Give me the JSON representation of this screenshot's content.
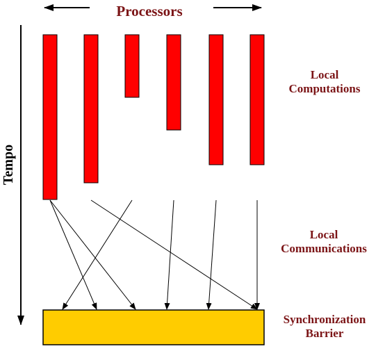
{
  "labels": {
    "processors": "Processors",
    "time_axis": "Tempo",
    "local_computations": [
      "Local",
      "Computations"
    ],
    "local_communications": [
      "Local",
      "Communications"
    ],
    "synchronization_barrier": [
      "Synchronization",
      "Barrier"
    ]
  },
  "colors": {
    "computation_bar": "#ff0000",
    "barrier_fill": "#ffcc00",
    "label_text": "#7b1416",
    "outline": "#000000"
  },
  "processors": {
    "count": 6,
    "relative_computation_length": [
      1.0,
      0.9,
      0.38,
      0.58,
      0.79,
      0.79
    ]
  },
  "communications": [
    {
      "from_processor": 1,
      "to_processor": 2
    },
    {
      "from_processor": 1,
      "to_processor": 3
    },
    {
      "from_processor": 2,
      "to_processor": 6
    },
    {
      "from_processor": 3,
      "to_processor": 1
    },
    {
      "from_processor": 4,
      "to_processor": 4
    },
    {
      "from_processor": 5,
      "to_processor": 5
    },
    {
      "from_processor": 6,
      "to_processor": 6
    }
  ]
}
